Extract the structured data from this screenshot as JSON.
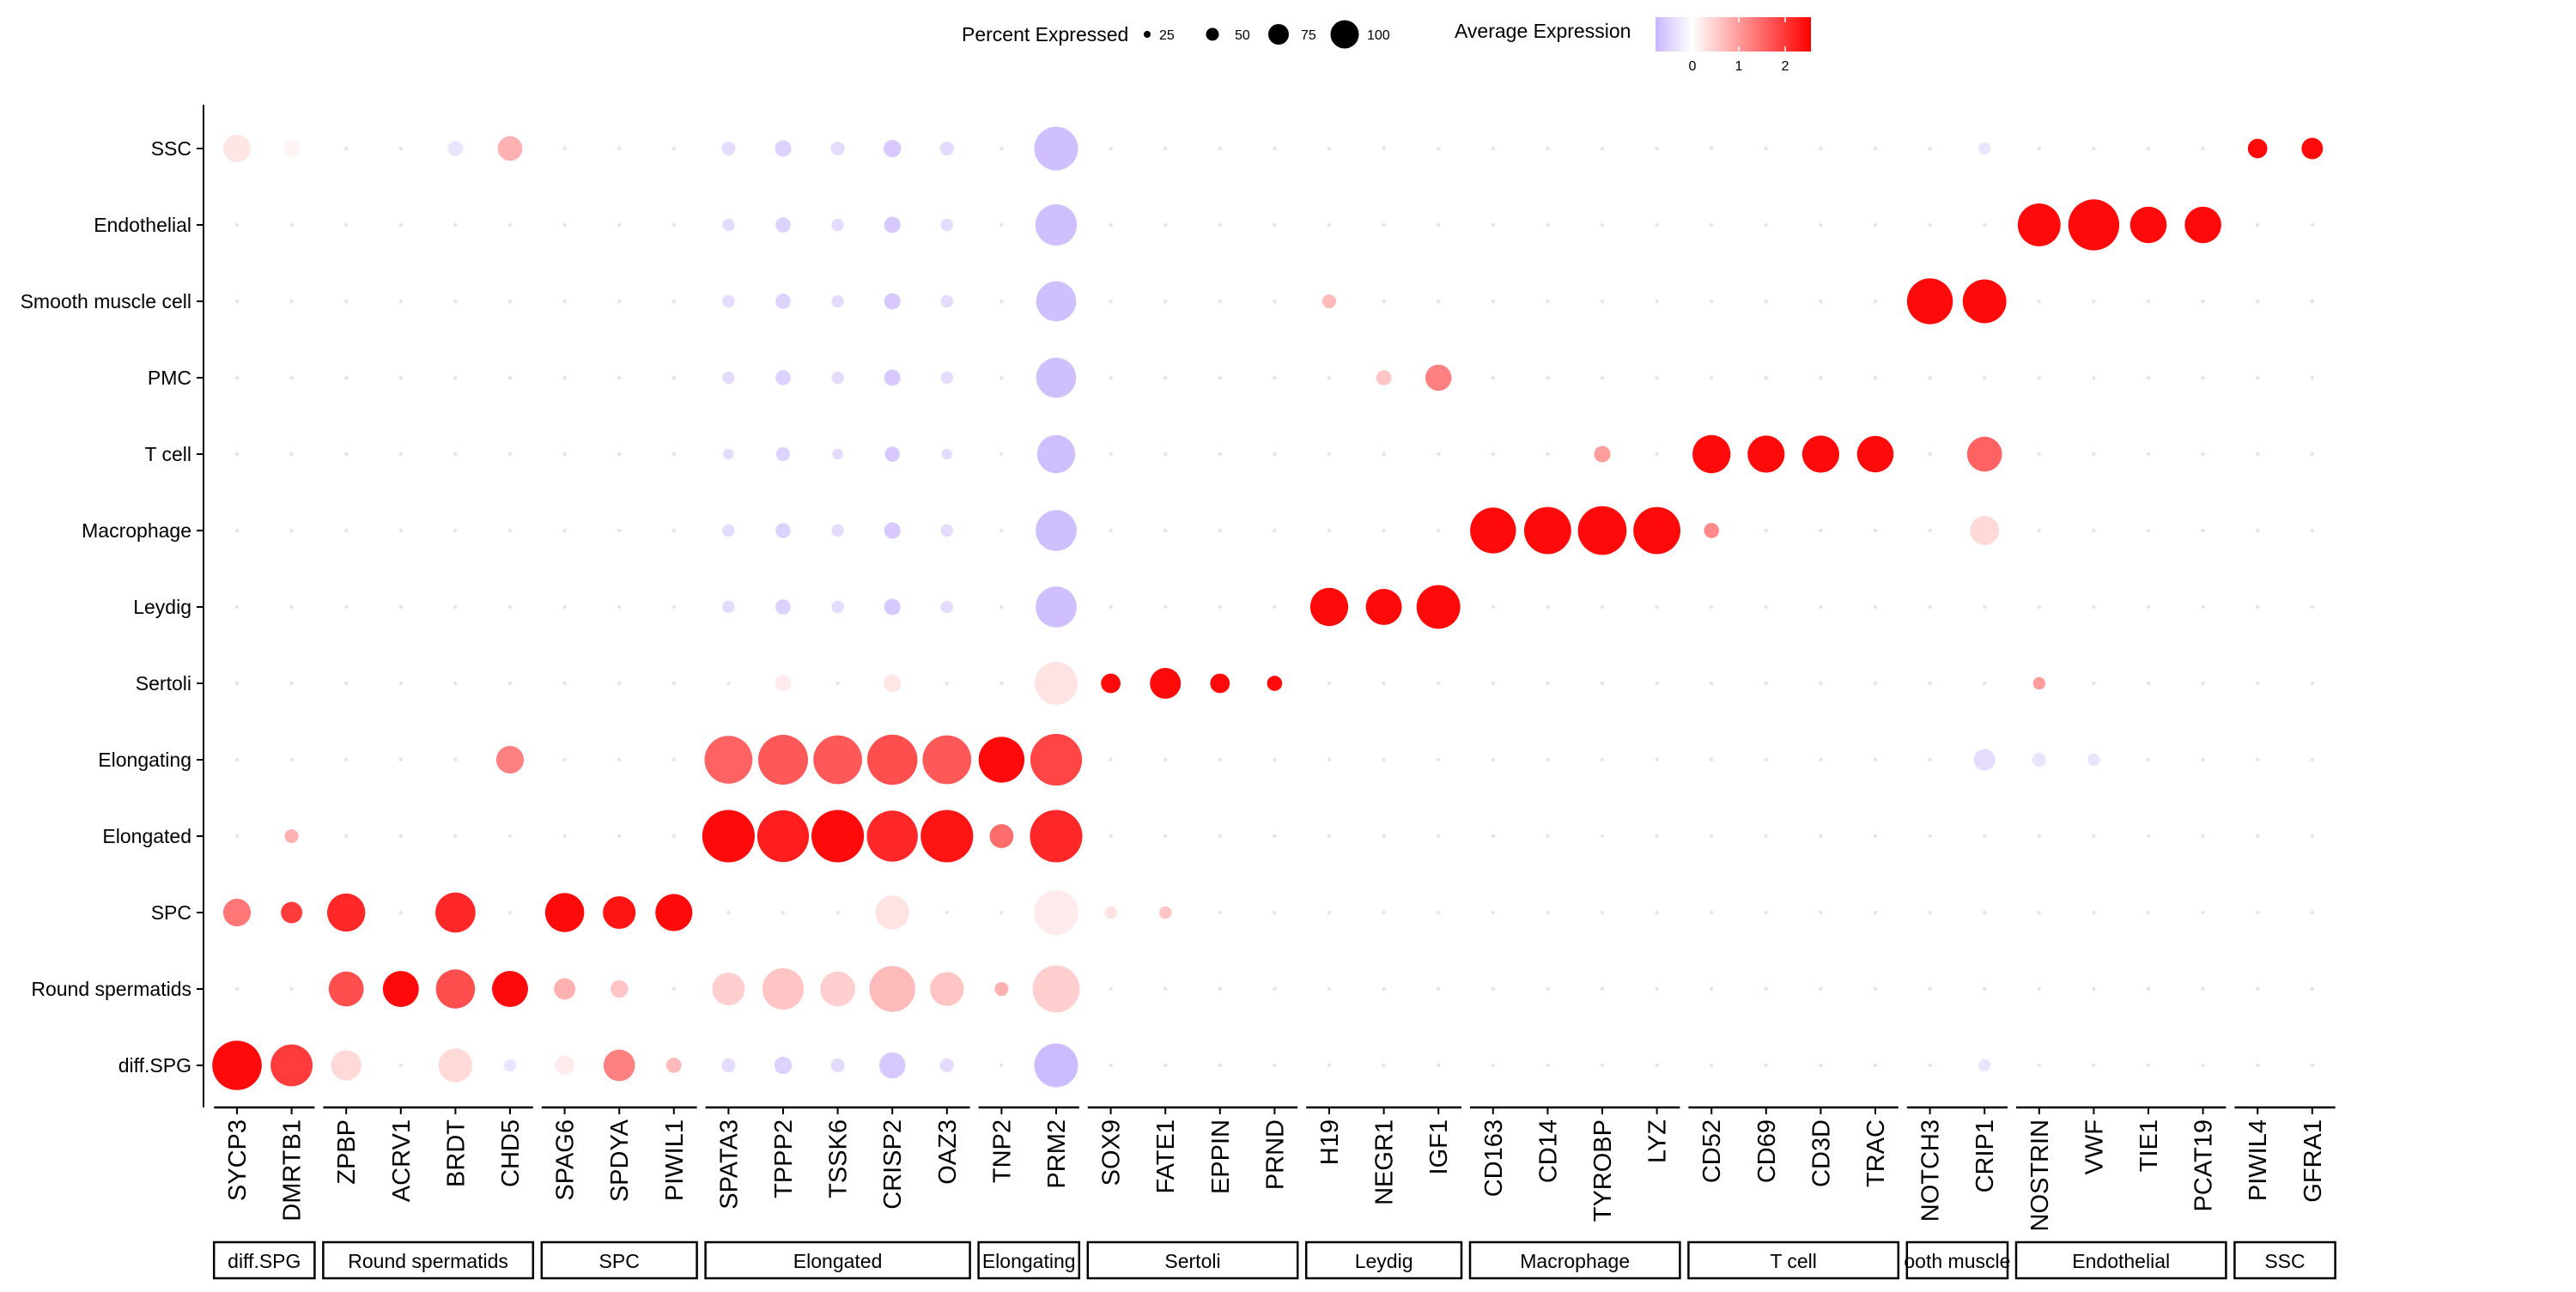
{
  "chart_data": {
    "type": "dot",
    "legend": {
      "size_title": "Percent Expressed",
      "size_ticks": [
        "25",
        "50",
        "75",
        "100"
      ],
      "color_title": "Average Expression",
      "color_ticks": [
        "0",
        "1",
        "2"
      ],
      "color_low": "#C9B6FF",
      "color_mid": "#FFFFFF",
      "color_high": "#FF0000",
      "color_range": [
        -0.8,
        2.6
      ]
    },
    "rows": [
      "SSC",
      "Endothelial",
      "Smooth muscle cell",
      "PMC",
      "T cell",
      "Macrophage",
      "Leydig",
      "Sertoli",
      "Elongating",
      "Elongated",
      "SPC",
      "Round spermatids",
      "diff.SPG"
    ],
    "genes": [
      "SYCP3",
      "DMRTB1",
      "ZPBP",
      "ACRV1",
      "BRDT",
      "CHD5",
      "SPAG6",
      "SPDYA",
      "PIWIL1",
      "SPATA3",
      "TPPP2",
      "TSSK6",
      "CRISP2",
      "OAZ3",
      "TNP2",
      "PRM2",
      "SOX9",
      "FATE1",
      "EPPIN",
      "PRND",
      "H19",
      "NEGR1",
      "IGF1",
      "CD163",
      "CD14",
      "TYROBP",
      "LYZ",
      "CD52",
      "CD69",
      "CD3D",
      "TRAC",
      "NOTCH3",
      "CRIP1",
      "NOSTRIN",
      "VWF",
      "TIE1",
      "PCAT19",
      "PIWIL4",
      "GFRA1"
    ],
    "groups": [
      {
        "label": "diff.SPG",
        "count": 2
      },
      {
        "label": "Round spermatids",
        "count": 4
      },
      {
        "label": "SPC",
        "count": 3
      },
      {
        "label": "Elongated",
        "count": 5
      },
      {
        "label": "Elongating",
        "count": 2
      },
      {
        "label": "Sertoli",
        "count": 4
      },
      {
        "label": "Leydig",
        "count": 3
      },
      {
        "label": "Macrophage",
        "count": 4
      },
      {
        "label": "T cell",
        "count": 4
      },
      {
        "label": "ooth muscle",
        "count": 2
      },
      {
        "label": "Endothelial",
        "count": 4
      },
      {
        "label": "SSC",
        "count": 2
      }
    ],
    "points": [
      {
        "row": "SSC",
        "gene": "SYCP3",
        "pct": 20,
        "avg": 0.25
      },
      {
        "row": "SSC",
        "gene": "DMRTB1",
        "pct": 8,
        "avg": 0.1
      },
      {
        "row": "SSC",
        "gene": "BRDT",
        "pct": 6,
        "avg": -0.3
      },
      {
        "row": "SSC",
        "gene": "CHD5",
        "pct": 16,
        "avg": 0.8
      },
      {
        "row": "SSC",
        "gene": "SPATA3",
        "pct": 5,
        "avg": -0.4
      },
      {
        "row": "SSC",
        "gene": "TPPP2",
        "pct": 7,
        "avg": -0.5
      },
      {
        "row": "SSC",
        "gene": "TSSK6",
        "pct": 5,
        "avg": -0.4
      },
      {
        "row": "SSC",
        "gene": "CRISP2",
        "pct": 8,
        "avg": -0.6
      },
      {
        "row": "SSC",
        "gene": "OAZ3",
        "pct": 5,
        "avg": -0.4
      },
      {
        "row": "SSC",
        "gene": "PRM2",
        "pct": 50,
        "avg": -0.7
      },
      {
        "row": "SSC",
        "gene": "CRIP1",
        "pct": 4,
        "avg": -0.3
      },
      {
        "row": "SSC",
        "gene": "PIWIL4",
        "pct": 10,
        "avg": 2.5
      },
      {
        "row": "SSC",
        "gene": "GFRA1",
        "pct": 12,
        "avg": 2.5
      },
      {
        "row": "Endothelial",
        "gene": "SPATA3",
        "pct": 4,
        "avg": -0.4
      },
      {
        "row": "Endothelial",
        "gene": "TPPP2",
        "pct": 6,
        "avg": -0.5
      },
      {
        "row": "Endothelial",
        "gene": "TSSK6",
        "pct": 4,
        "avg": -0.4
      },
      {
        "row": "Endothelial",
        "gene": "CRISP2",
        "pct": 7,
        "avg": -0.6
      },
      {
        "row": "Endothelial",
        "gene": "OAZ3",
        "pct": 4,
        "avg": -0.4
      },
      {
        "row": "Endothelial",
        "gene": "PRM2",
        "pct": 45,
        "avg": -0.7
      },
      {
        "row": "Endothelial",
        "gene": "NOSTRIN",
        "pct": 48,
        "avg": 2.5
      },
      {
        "row": "Endothelial",
        "gene": "VWF",
        "pct": 68,
        "avg": 2.5
      },
      {
        "row": "Endothelial",
        "gene": "TIE1",
        "pct": 35,
        "avg": 2.5
      },
      {
        "row": "Endothelial",
        "gene": "PCAT19",
        "pct": 35,
        "avg": 2.5
      },
      {
        "row": "Smooth muscle cell",
        "gene": "SPATA3",
        "pct": 4,
        "avg": -0.4
      },
      {
        "row": "Smooth muscle cell",
        "gene": "TPPP2",
        "pct": 6,
        "avg": -0.5
      },
      {
        "row": "Smooth muscle cell",
        "gene": "TSSK6",
        "pct": 4,
        "avg": -0.4
      },
      {
        "row": "Smooth muscle cell",
        "gene": "CRISP2",
        "pct": 7,
        "avg": -0.6
      },
      {
        "row": "Smooth muscle cell",
        "gene": "OAZ3",
        "pct": 4,
        "avg": -0.4
      },
      {
        "row": "Smooth muscle cell",
        "gene": "PRM2",
        "pct": 42,
        "avg": -0.7
      },
      {
        "row": "Smooth muscle cell",
        "gene": "H19",
        "pct": 5,
        "avg": 0.7
      },
      {
        "row": "Smooth muscle cell",
        "gene": "NOTCH3",
        "pct": 55,
        "avg": 2.5
      },
      {
        "row": "Smooth muscle cell",
        "gene": "CRIP1",
        "pct": 50,
        "avg": 2.5
      },
      {
        "row": "PMC",
        "gene": "SPATA3",
        "pct": 4,
        "avg": -0.4
      },
      {
        "row": "PMC",
        "gene": "TPPP2",
        "pct": 6,
        "avg": -0.5
      },
      {
        "row": "PMC",
        "gene": "TSSK6",
        "pct": 4,
        "avg": -0.4
      },
      {
        "row": "PMC",
        "gene": "CRISP2",
        "pct": 7,
        "avg": -0.6
      },
      {
        "row": "PMC",
        "gene": "OAZ3",
        "pct": 4,
        "avg": -0.4
      },
      {
        "row": "PMC",
        "gene": "PRM2",
        "pct": 42,
        "avg": -0.7
      },
      {
        "row": "PMC",
        "gene": "NEGR1",
        "pct": 6,
        "avg": 0.6
      },
      {
        "row": "PMC",
        "gene": "IGF1",
        "pct": 18,
        "avg": 1.3
      },
      {
        "row": "T cell",
        "gene": "SPATA3",
        "pct": 3,
        "avg": -0.4
      },
      {
        "row": "T cell",
        "gene": "TPPP2",
        "pct": 5,
        "avg": -0.5
      },
      {
        "row": "T cell",
        "gene": "TSSK6",
        "pct": 3,
        "avg": -0.4
      },
      {
        "row": "T cell",
        "gene": "CRISP2",
        "pct": 6,
        "avg": -0.6
      },
      {
        "row": "T cell",
        "gene": "OAZ3",
        "pct": 3,
        "avg": -0.4
      },
      {
        "row": "T cell",
        "gene": "PRM2",
        "pct": 38,
        "avg": -0.7
      },
      {
        "row": "T cell",
        "gene": "TYROBP",
        "pct": 7,
        "avg": 1.0
      },
      {
        "row": "T cell",
        "gene": "CD52",
        "pct": 38,
        "avg": 2.5
      },
      {
        "row": "T cell",
        "gene": "CD69",
        "pct": 36,
        "avg": 2.5
      },
      {
        "row": "T cell",
        "gene": "CD3D",
        "pct": 36,
        "avg": 2.5
      },
      {
        "row": "T cell",
        "gene": "TRAC",
        "pct": 35,
        "avg": 2.5
      },
      {
        "row": "T cell",
        "gene": "CRIP1",
        "pct": 32,
        "avg": 1.6
      },
      {
        "row": "Macrophage",
        "gene": "SPATA3",
        "pct": 4,
        "avg": -0.4
      },
      {
        "row": "Macrophage",
        "gene": "TPPP2",
        "pct": 6,
        "avg": -0.5
      },
      {
        "row": "Macrophage",
        "gene": "TSSK6",
        "pct": 4,
        "avg": -0.4
      },
      {
        "row": "Macrophage",
        "gene": "CRISP2",
        "pct": 7,
        "avg": -0.6
      },
      {
        "row": "Macrophage",
        "gene": "OAZ3",
        "pct": 4,
        "avg": -0.4
      },
      {
        "row": "Macrophage",
        "gene": "PRM2",
        "pct": 44,
        "avg": -0.7
      },
      {
        "row": "Macrophage",
        "gene": "CD163",
        "pct": 55,
        "avg": 2.5
      },
      {
        "row": "Macrophage",
        "gene": "CD14",
        "pct": 58,
        "avg": 2.5
      },
      {
        "row": "Macrophage",
        "gene": "TYROBP",
        "pct": 62,
        "avg": 2.5
      },
      {
        "row": "Macrophage",
        "gene": "LYZ",
        "pct": 58,
        "avg": 2.5
      },
      {
        "row": "Macrophage",
        "gene": "CD52",
        "pct": 6,
        "avg": 1.2
      },
      {
        "row": "Macrophage",
        "gene": "CRIP1",
        "pct": 22,
        "avg": 0.4
      },
      {
        "row": "Leydig",
        "gene": "SPATA3",
        "pct": 4,
        "avg": -0.4
      },
      {
        "row": "Leydig",
        "gene": "TPPP2",
        "pct": 6,
        "avg": -0.5
      },
      {
        "row": "Leydig",
        "gene": "TSSK6",
        "pct": 4,
        "avg": -0.4
      },
      {
        "row": "Leydig",
        "gene": "CRISP2",
        "pct": 7,
        "avg": -0.6
      },
      {
        "row": "Leydig",
        "gene": "OAZ3",
        "pct": 4,
        "avg": -0.4
      },
      {
        "row": "Leydig",
        "gene": "PRM2",
        "pct": 44,
        "avg": -0.7
      },
      {
        "row": "Leydig",
        "gene": "H19",
        "pct": 38,
        "avg": 2.5
      },
      {
        "row": "Leydig",
        "gene": "NEGR1",
        "pct": 34,
        "avg": 2.5
      },
      {
        "row": "Leydig",
        "gene": "IGF1",
        "pct": 50,
        "avg": 2.5
      },
      {
        "row": "Sertoli",
        "gene": "TPPP2",
        "pct": 7,
        "avg": 0.2
      },
      {
        "row": "Sertoli",
        "gene": "CRISP2",
        "pct": 8,
        "avg": 0.25
      },
      {
        "row": "Sertoli",
        "gene": "PRM2",
        "pct": 48,
        "avg": 0.3
      },
      {
        "row": "Sertoli",
        "gene": "SOX9",
        "pct": 10,
        "avg": 2.5
      },
      {
        "row": "Sertoli",
        "gene": "FATE1",
        "pct": 25,
        "avg": 2.5
      },
      {
        "row": "Sertoli",
        "gene": "EPPIN",
        "pct": 10,
        "avg": 2.5
      },
      {
        "row": "Sertoli",
        "gene": "PRND",
        "pct": 6,
        "avg": 2.5
      },
      {
        "row": "Sertoli",
        "gene": "NOSTRIN",
        "pct": 4,
        "avg": 1.0
      },
      {
        "row": "Elongating",
        "gene": "CHD5",
        "pct": 20,
        "avg": 1.3
      },
      {
        "row": "Elongating",
        "gene": "SPATA3",
        "pct": 60,
        "avg": 1.6
      },
      {
        "row": "Elongating",
        "gene": "TPPP2",
        "pct": 65,
        "avg": 1.7
      },
      {
        "row": "Elongating",
        "gene": "TSSK6",
        "pct": 62,
        "avg": 1.7
      },
      {
        "row": "Elongating",
        "gene": "CRISP2",
        "pct": 66,
        "avg": 1.8
      },
      {
        "row": "Elongating",
        "gene": "OAZ3",
        "pct": 62,
        "avg": 1.7
      },
      {
        "row": "Elongating",
        "gene": "TNP2",
        "pct": 55,
        "avg": 2.5
      },
      {
        "row": "Elongating",
        "gene": "PRM2",
        "pct": 70,
        "avg": 1.9
      },
      {
        "row": "Elongating",
        "gene": "CRIP1",
        "pct": 12,
        "avg": -0.4
      },
      {
        "row": "Elongating",
        "gene": "NOSTRIN",
        "pct": 5,
        "avg": -0.3
      },
      {
        "row": "Elongating",
        "gene": "VWF",
        "pct": 4,
        "avg": -0.3
      },
      {
        "row": "Elongated",
        "gene": "DMRTB1",
        "pct": 5,
        "avg": 0.8
      },
      {
        "row": "Elongated",
        "gene": "SPATA3",
        "pct": 72,
        "avg": 2.5
      },
      {
        "row": "Elongated",
        "gene": "TPPP2",
        "pct": 70,
        "avg": 2.3
      },
      {
        "row": "Elongated",
        "gene": "TSSK6",
        "pct": 72,
        "avg": 2.5
      },
      {
        "row": "Elongated",
        "gene": "CRISP2",
        "pct": 68,
        "avg": 2.2
      },
      {
        "row": "Elongated",
        "gene": "OAZ3",
        "pct": 72,
        "avg": 2.4
      },
      {
        "row": "Elongated",
        "gene": "TNP2",
        "pct": 15,
        "avg": 1.5
      },
      {
        "row": "Elongated",
        "gene": "PRM2",
        "pct": 72,
        "avg": 2.2
      },
      {
        "row": "SPC",
        "gene": "SYCP3",
        "pct": 20,
        "avg": 1.4
      },
      {
        "row": "SPC",
        "gene": "DMRTB1",
        "pct": 12,
        "avg": 2.0
      },
      {
        "row": "SPC",
        "gene": "ZPBP",
        "pct": 38,
        "avg": 2.2
      },
      {
        "row": "SPC",
        "gene": "BRDT",
        "pct": 42,
        "avg": 2.2
      },
      {
        "row": "SPC",
        "gene": "SPAG6",
        "pct": 40,
        "avg": 2.5
      },
      {
        "row": "SPC",
        "gene": "SPDYA",
        "pct": 28,
        "avg": 2.4
      },
      {
        "row": "SPC",
        "gene": "PIWIL1",
        "pct": 36,
        "avg": 2.5
      },
      {
        "row": "SPC",
        "gene": "CRISP2",
        "pct": 30,
        "avg": 0.3
      },
      {
        "row": "SPC",
        "gene": "PRM2",
        "pct": 52,
        "avg": 0.2
      },
      {
        "row": "SPC",
        "gene": "SOX9",
        "pct": 4,
        "avg": 0.3
      },
      {
        "row": "SPC",
        "gene": "FATE1",
        "pct": 4,
        "avg": 0.6
      },
      {
        "row": "Round spermatids",
        "gene": "ZPBP",
        "pct": 32,
        "avg": 1.8
      },
      {
        "row": "Round spermatids",
        "gene": "ACRV1",
        "pct": 34,
        "avg": 2.5
      },
      {
        "row": "Round spermatids",
        "gene": "BRDT",
        "pct": 40,
        "avg": 1.8
      },
      {
        "row": "Round spermatids",
        "gene": "CHD5",
        "pct": 34,
        "avg": 2.5
      },
      {
        "row": "Round spermatids",
        "gene": "SPAG6",
        "pct": 12,
        "avg": 0.8
      },
      {
        "row": "Round spermatids",
        "gene": "SPDYA",
        "pct": 8,
        "avg": 0.6
      },
      {
        "row": "Round spermatids",
        "gene": "SPATA3",
        "pct": 28,
        "avg": 0.5
      },
      {
        "row": "Round spermatids",
        "gene": "TPPP2",
        "pct": 45,
        "avg": 0.6
      },
      {
        "row": "Round spermatids",
        "gene": "TSSK6",
        "pct": 32,
        "avg": 0.5
      },
      {
        "row": "Round spermatids",
        "gene": "CRISP2",
        "pct": 55,
        "avg": 0.7
      },
      {
        "row": "Round spermatids",
        "gene": "OAZ3",
        "pct": 30,
        "avg": 0.6
      },
      {
        "row": "Round spermatids",
        "gene": "TNP2",
        "pct": 5,
        "avg": 0.8
      },
      {
        "row": "Round spermatids",
        "gene": "PRM2",
        "pct": 58,
        "avg": 0.5
      },
      {
        "row": "diff.SPG",
        "gene": "SYCP3",
        "pct": 64,
        "avg": 2.5
      },
      {
        "row": "diff.SPG",
        "gene": "DMRTB1",
        "pct": 46,
        "avg": 2.0
      },
      {
        "row": "diff.SPG",
        "gene": "ZPBP",
        "pct": 24,
        "avg": 0.4
      },
      {
        "row": "diff.SPG",
        "gene": "BRDT",
        "pct": 30,
        "avg": 0.4
      },
      {
        "row": "diff.SPG",
        "gene": "CHD5",
        "pct": 4,
        "avg": -0.3
      },
      {
        "row": "diff.SPG",
        "gene": "SPAG6",
        "pct": 10,
        "avg": 0.2
      },
      {
        "row": "diff.SPG",
        "gene": "SPDYA",
        "pct": 26,
        "avg": 1.3
      },
      {
        "row": "diff.SPG",
        "gene": "PIWIL1",
        "pct": 6,
        "avg": 0.7
      },
      {
        "row": "diff.SPG",
        "gene": "SPATA3",
        "pct": 5,
        "avg": -0.4
      },
      {
        "row": "diff.SPG",
        "gene": "TPPP2",
        "pct": 8,
        "avg": -0.5
      },
      {
        "row": "diff.SPG",
        "gene": "TSSK6",
        "pct": 5,
        "avg": -0.4
      },
      {
        "row": "diff.SPG",
        "gene": "CRISP2",
        "pct": 18,
        "avg": -0.6
      },
      {
        "row": "diff.SPG",
        "gene": "OAZ3",
        "pct": 5,
        "avg": -0.4
      },
      {
        "row": "diff.SPG",
        "gene": "PRM2",
        "pct": 50,
        "avg": -0.75
      },
      {
        "row": "diff.SPG",
        "gene": "CRIP1",
        "pct": 4,
        "avg": -0.3
      }
    ]
  }
}
